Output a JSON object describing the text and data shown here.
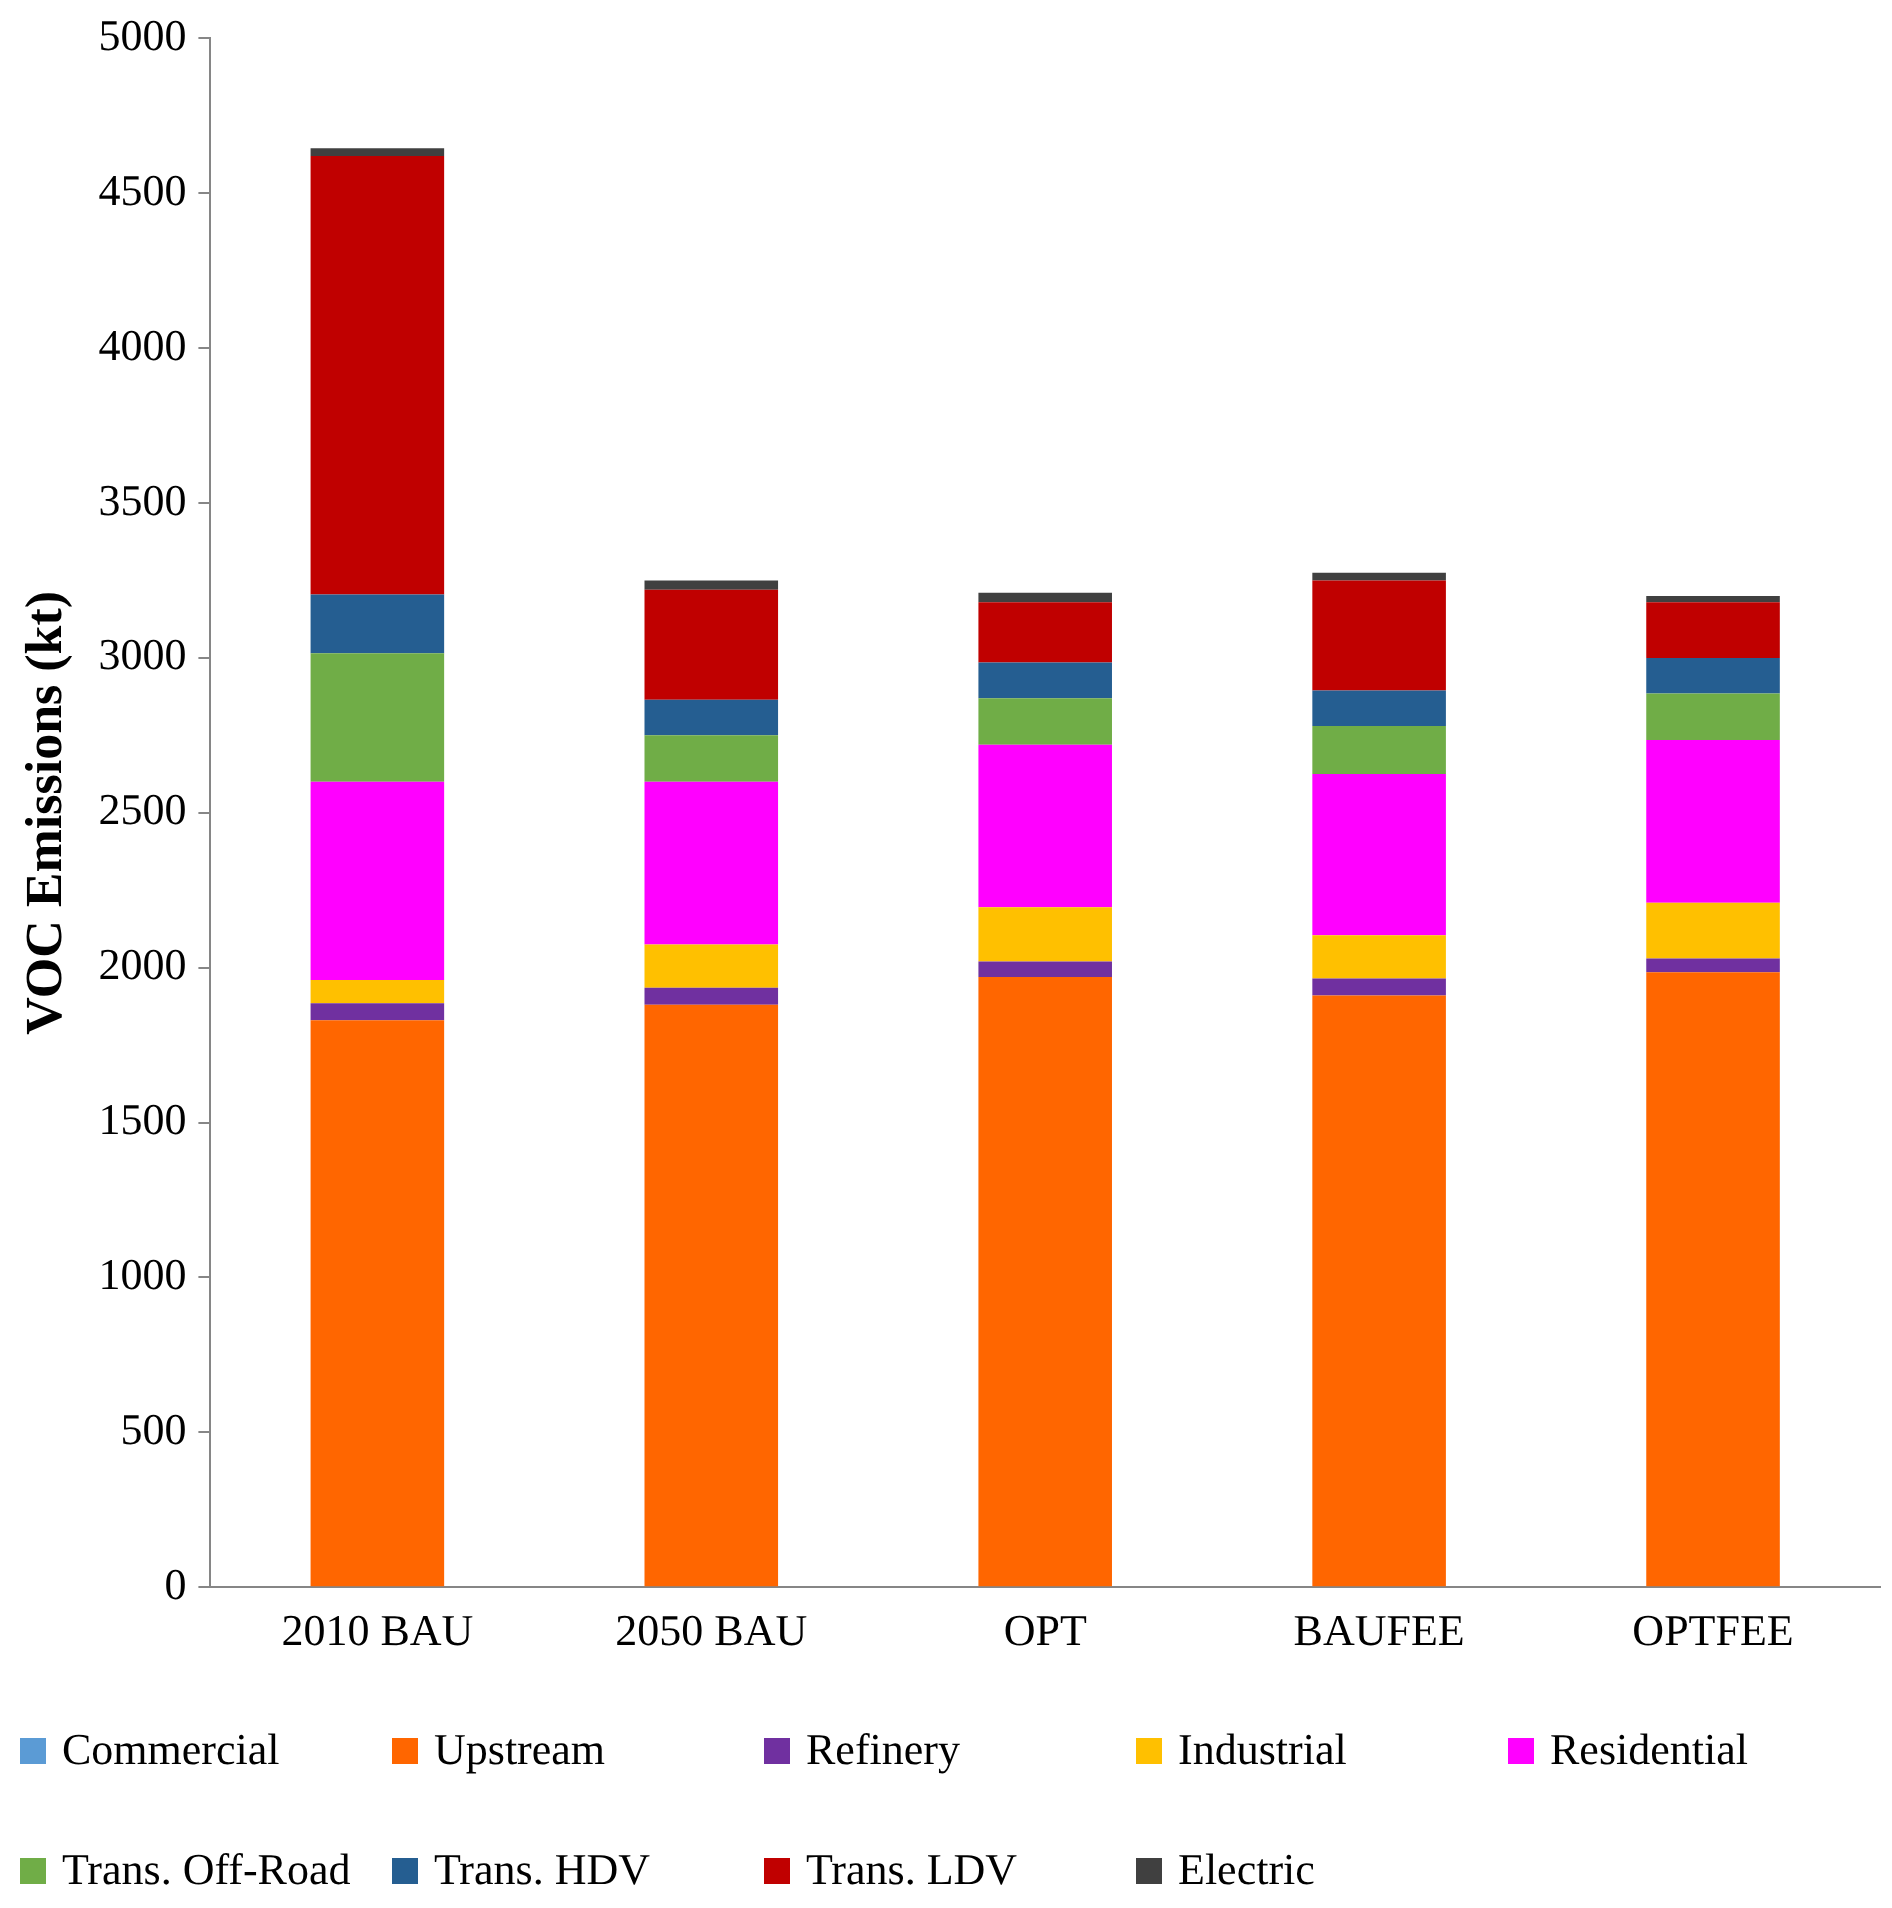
{
  "chart_data": {
    "type": "bar",
    "stacked": true,
    "ylabel": "VOC Emissions (kt)",
    "categories": [
      "2010 BAU",
      "2050 BAU",
      "OPT",
      "BAUFEE",
      "OPTFEE"
    ],
    "ylim": [
      0,
      5000
    ],
    "yticks": [
      0,
      500,
      1000,
      1500,
      2000,
      2500,
      3000,
      3500,
      4000,
      4500,
      5000
    ],
    "grid": false,
    "legend": "bottom",
    "series": [
      {
        "name": "Commercial",
        "color": "#5b9bd5",
        "values": [
          0,
          0,
          0,
          0,
          0
        ]
      },
      {
        "name": "Upstream",
        "color": "#ff6600",
        "values": [
          1830,
          1880,
          1970,
          1910,
          1985
        ]
      },
      {
        "name": "Refinery",
        "color": "#7030a0",
        "values": [
          55,
          55,
          50,
          55,
          45
        ]
      },
      {
        "name": "Industrial",
        "color": "#ffc000",
        "values": [
          75,
          140,
          175,
          140,
          180
        ]
      },
      {
        "name": "Residential",
        "color": "#ff00ff",
        "values": [
          640,
          525,
          525,
          520,
          525
        ]
      },
      {
        "name": "Trans. Off-Road",
        "color": "#70ad47",
        "values": [
          415,
          150,
          150,
          155,
          150
        ]
      },
      {
        "name": "Trans. HDV",
        "color": "#255e91",
        "values": [
          190,
          115,
          115,
          115,
          115
        ]
      },
      {
        "name": "Trans. LDV",
        "color": "#c00000",
        "values": [
          1415,
          355,
          195,
          355,
          180
        ]
      },
      {
        "name": "Electric",
        "color": "#404040",
        "values": [
          25,
          30,
          30,
          25,
          20
        ]
      }
    ]
  }
}
